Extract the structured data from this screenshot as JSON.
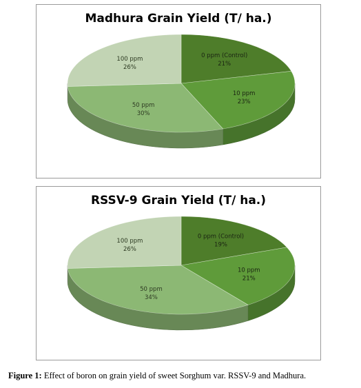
{
  "chart_data": [
    {
      "type": "pie",
      "style": "3d",
      "title": "Madhura Grain Yield (T/ ha.)",
      "slices": [
        {
          "label": "0 ppm (Control)",
          "value": 21,
          "value_label": "21%",
          "color": "#4e7d2a"
        },
        {
          "label": "10 ppm",
          "value": 23,
          "value_label": "23%",
          "color": "#5f9b3a"
        },
        {
          "label": "50 ppm",
          "value": 30,
          "value_label": "30%",
          "color": "#8cb874"
        },
        {
          "label": "100 ppm",
          "value": 26,
          "value_label": "26%",
          "color": "#c2d4b4"
        }
      ]
    },
    {
      "type": "pie",
      "style": "3d",
      "title": "RSSV-9 Grain Yield (T/ ha.)",
      "slices": [
        {
          "label": "0 ppm (Control)",
          "value": 19,
          "value_label": "19%",
          "color": "#4e7d2a"
        },
        {
          "label": "10 ppm",
          "value": 21,
          "value_label": "21%",
          "color": "#5f9b3a"
        },
        {
          "label": "50 ppm",
          "value": 34,
          "value_label": "34%",
          "color": "#8cb874"
        },
        {
          "label": "100 ppm",
          "value": 26,
          "value_label": "26%",
          "color": "#c2d4b4"
        }
      ]
    }
  ],
  "caption": {
    "prefix": "Figure 1:",
    "text": " Effect of boron on grain yield of sweet Sorghum var. RSSV-9 and Madhura."
  }
}
